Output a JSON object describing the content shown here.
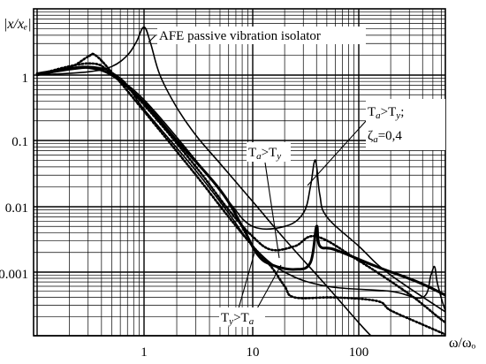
{
  "chart_data": {
    "type": "line",
    "scale": {
      "x": "log",
      "y": "log"
    },
    "xlim": [
      0.1,
      1000
    ],
    "ylim": [
      0.0001,
      10
    ],
    "xlabel": "ω/ωₒ",
    "ylabel": "|x/xₑ|",
    "grid": true,
    "x_tick_labels": [
      {
        "value": 1,
        "label": "1"
      },
      {
        "value": 10,
        "label": "10"
      },
      {
        "value": 100,
        "label": "100"
      }
    ],
    "y_tick_labels": [
      {
        "value": 1,
        "label": "1"
      },
      {
        "value": 0.1,
        "label": "0.1"
      },
      {
        "value": 0.01,
        "label": "0.01"
      },
      {
        "value": 0.001,
        "label": "0.001"
      }
    ],
    "series": [
      {
        "style": "thin-solid",
        "points": [
          [
            0.1,
            1.0
          ],
          [
            0.3,
            1.12
          ],
          [
            0.5,
            1.35
          ],
          [
            0.7,
            2.0
          ],
          [
            0.85,
            3.2
          ],
          [
            1.0,
            5.3
          ],
          [
            1.15,
            3.0
          ],
          [
            1.4,
            1.0
          ],
          [
            2.0,
            0.32
          ],
          [
            3.0,
            0.12
          ],
          [
            5.0,
            0.045
          ],
          [
            10.0,
            0.012
          ],
          [
            20.0,
            0.0032
          ],
          [
            50.0,
            0.0006
          ],
          [
            100.0,
            0.00016
          ],
          [
            130.0,
            0.0001
          ]
        ]
      },
      {
        "style": "thick-solid",
        "points": [
          [
            0.1,
            1.05
          ],
          [
            0.2,
            1.25
          ],
          [
            0.3,
            1.3
          ],
          [
            0.5,
            1.0
          ],
          [
            1.0,
            0.38
          ],
          [
            2.0,
            0.1
          ],
          [
            5.0,
            0.018
          ],
          [
            8.0,
            0.005
          ],
          [
            11.0,
            0.0019
          ],
          [
            15.0,
            0.0013
          ],
          [
            25.0,
            0.0011
          ],
          [
            35.0,
            0.0014
          ],
          [
            40.0,
            0.005
          ],
          [
            43.0,
            0.0025
          ],
          [
            60.0,
            0.0022
          ],
          [
            150.0,
            0.0012
          ],
          [
            400.0,
            0.00065
          ],
          [
            1000.0,
            0.0003
          ]
        ]
      },
      {
        "style": "thin-solid",
        "points": [
          [
            0.1,
            1.0
          ],
          [
            0.3,
            1.28
          ],
          [
            0.5,
            1.0
          ],
          [
            1.0,
            0.42
          ],
          [
            3.0,
            0.05
          ],
          [
            6.0,
            0.012
          ],
          [
            10.0,
            0.005
          ],
          [
            20.0,
            0.005
          ],
          [
            30.0,
            0.008
          ],
          [
            35.0,
            0.02
          ],
          [
            38.0,
            0.047
          ],
          [
            40.0,
            0.042
          ],
          [
            43.0,
            0.015
          ],
          [
            50.0,
            0.007
          ],
          [
            100.0,
            0.0025
          ],
          [
            200.0,
            0.0009
          ],
          [
            1000.0,
            0.00015
          ]
        ]
      },
      {
        "style": "dotted",
        "points": [
          [
            0.1,
            1.02
          ],
          [
            0.3,
            1.5
          ],
          [
            0.5,
            1.05
          ],
          [
            1.0,
            0.35
          ],
          [
            3.0,
            0.04
          ],
          [
            6.0,
            0.009
          ],
          [
            10.0,
            0.0035
          ],
          [
            15.0,
            0.0022
          ],
          [
            25.0,
            0.0025
          ],
          [
            40.0,
            0.0035
          ],
          [
            100.0,
            0.0015
          ],
          [
            300.0,
            0.00045
          ],
          [
            600.0,
            0.00018
          ],
          [
            1000.0,
            0.0001
          ]
        ]
      },
      {
        "style": "dotted",
        "points": [
          [
            0.1,
            1.0
          ],
          [
            0.2,
            1.3
          ],
          [
            0.3,
            1.9
          ],
          [
            0.35,
            2.0
          ],
          [
            0.5,
            1.1
          ],
          [
            1.0,
            0.28
          ],
          [
            3.0,
            0.03
          ],
          [
            6.0,
            0.007
          ],
          [
            10.0,
            0.0025
          ],
          [
            15.0,
            0.0012
          ],
          [
            20.0,
            0.0006
          ],
          [
            25.0,
            0.0004
          ],
          [
            60.0,
            0.0004
          ],
          [
            150.0,
            0.00035
          ],
          [
            200.0,
            0.00025
          ],
          [
            400.0,
            0.00015
          ],
          [
            700.0,
            0.0001
          ]
        ]
      },
      {
        "style": "thin-solid",
        "points": [
          [
            0.1,
            1.0
          ],
          [
            0.3,
            1.35
          ],
          [
            0.6,
            0.9
          ],
          [
            1.0,
            0.3
          ],
          [
            3.0,
            0.035
          ],
          [
            6.0,
            0.008
          ],
          [
            10.0,
            0.0025
          ],
          [
            20.0,
            0.001
          ],
          [
            50.0,
            0.0006
          ],
          [
            200.0,
            0.0005
          ],
          [
            400.0,
            0.0004
          ],
          [
            480.0,
            0.0009
          ],
          [
            520.0,
            0.0012
          ],
          [
            560.0,
            0.0006
          ],
          [
            700.0,
            0.0002
          ],
          [
            1000.0,
            0.00012
          ]
        ]
      }
    ],
    "annotations": [
      {
        "id": "afe",
        "text": "AFE passive vibration isolator"
      },
      {
        "id": "ta-gt-ty",
        "main": "T",
        "sub": "a",
        "mid": ">T",
        "sub2": "y",
        "end": ";"
      },
      {
        "id": "zeta",
        "main": "ζ",
        "sub": "a",
        "end": "=0,4"
      },
      {
        "id": "ta-gt-ty-mid",
        "main": "T",
        "sub": "a",
        "mid": ">T",
        "sub2": "y",
        "end": ""
      },
      {
        "id": "ty-gt-ta",
        "main": "T",
        "sub": "y",
        "mid": ">T",
        "sub2": "a",
        "end": ""
      }
    ]
  }
}
